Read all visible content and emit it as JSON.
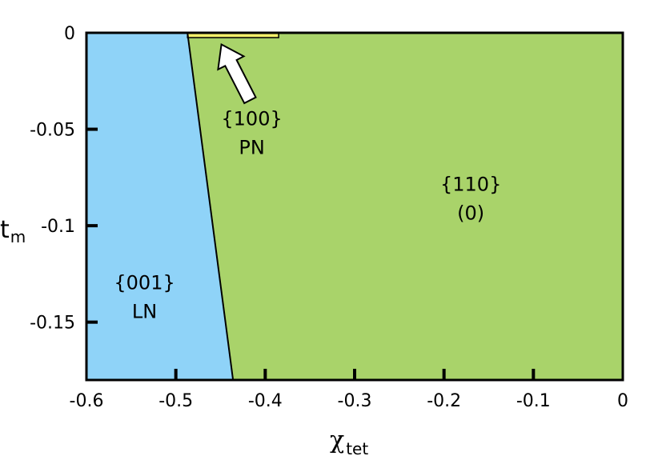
{
  "chart_data": {
    "type": "area",
    "xlabel": {
      "symbol": "χ",
      "subscript": "tet"
    },
    "ylabel": {
      "symbol": "t",
      "subscript": "m"
    },
    "xlim": [
      -0.6,
      0
    ],
    "ylim": [
      -0.18,
      0
    ],
    "xticks": [
      {
        "value": -0.6,
        "label": "-0.6"
      },
      {
        "value": -0.5,
        "label": "-0.5"
      },
      {
        "value": -0.4,
        "label": "-0.4"
      },
      {
        "value": -0.3,
        "label": "-0.3"
      },
      {
        "value": -0.2,
        "label": "-0.2"
      },
      {
        "value": -0.1,
        "label": "-0.1"
      },
      {
        "value": 0,
        "label": "0"
      }
    ],
    "yticks": [
      {
        "value": 0,
        "label": "0"
      },
      {
        "value": -0.05,
        "label": "-0.05"
      },
      {
        "value": -0.1,
        "label": "-0.1"
      },
      {
        "value": -0.15,
        "label": "-0.15"
      }
    ],
    "boundary": [
      {
        "x": -0.487,
        "y": 0
      },
      {
        "x": -0.436,
        "y": -0.18
      }
    ],
    "regions": [
      {
        "name": "{001} LN",
        "color": "#8fd3f8",
        "polygon": [
          [
            -0.6,
            0
          ],
          [
            -0.487,
            0
          ],
          [
            -0.436,
            -0.18
          ],
          [
            -0.6,
            -0.18
          ]
        ]
      },
      {
        "name": "{110} (0)",
        "color": "#a9d36a",
        "polygon": [
          [
            -0.487,
            0
          ],
          [
            0,
            0
          ],
          [
            0,
            -0.18
          ],
          [
            -0.436,
            -0.18
          ]
        ]
      },
      {
        "name": "{100} PN",
        "color": "#f4f06a",
        "polygon": [
          [
            -0.487,
            0
          ],
          [
            -0.385,
            0
          ],
          [
            -0.385,
            -0.0025
          ],
          [
            -0.487,
            -0.0025
          ]
        ]
      }
    ],
    "region_labels": [
      {
        "line1": "{001}",
        "line2": "LN",
        "x": -0.535,
        "y": -0.133
      },
      {
        "line1": "{100}",
        "line2": "PN",
        "x": -0.415,
        "y": -0.048
      },
      {
        "line1": "{110}",
        "line2": "(0)",
        "x": -0.17,
        "y": -0.082
      }
    ],
    "arrow": {
      "from": [
        -0.417,
        -0.035
      ],
      "to": [
        -0.449,
        -0.006
      ],
      "points_to": "{100} PN"
    },
    "grid": false,
    "legend": "none"
  }
}
